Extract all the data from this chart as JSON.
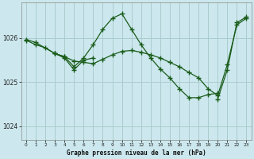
{
  "title": "Graphe pression niveau de la mer (hPa)",
  "bg_color": "#cce8ee",
  "grid_color": "#aacccc",
  "line_color": "#1a5c1a",
  "xlim": [
    -0.5,
    23.5
  ],
  "ylim": [
    1023.7,
    1026.8
  ],
  "yticks": [
    1024,
    1025,
    1026
  ],
  "xticks": [
    0,
    1,
    2,
    3,
    4,
    5,
    6,
    7,
    8,
    9,
    10,
    11,
    12,
    13,
    14,
    15,
    16,
    17,
    18,
    19,
    20,
    21,
    22,
    23
  ],
  "series": [
    {
      "x": [
        0,
        1,
        2,
        3,
        4,
        5,
        6,
        7,
        8,
        9,
        10,
        11,
        12,
        13,
        14,
        15,
        16,
        17,
        18,
        19,
        20,
        21,
        22,
        23
      ],
      "y": [
        1025.95,
        1025.85,
        1025.78,
        1025.65,
        1025.58,
        1025.48,
        1025.45,
        1025.42,
        1025.52,
        1025.62,
        1025.7,
        1025.72,
        1025.68,
        1025.62,
        1025.55,
        1025.45,
        1025.35,
        1025.22,
        1025.1,
        1024.85,
        1024.7,
        1025.4,
        1026.3,
        1026.45
      ]
    },
    {
      "x": [
        0,
        1,
        3,
        4,
        5,
        6,
        7,
        8,
        9,
        10,
        11,
        12,
        13,
        14,
        15,
        16,
        17,
        18,
        19,
        20
      ],
      "y": [
        1025.97,
        1025.9,
        1025.65,
        1025.58,
        1025.35,
        1025.55,
        1025.85,
        1026.2,
        1026.45,
        1026.55,
        1026.2,
        1025.85,
        1025.55,
        1025.3,
        1025.1,
        1024.85,
        1024.65,
        1024.65,
        1024.72,
        1024.75
      ]
    },
    {
      "x": [
        3,
        4,
        5,
        6,
        7
      ],
      "y": [
        1025.65,
        1025.55,
        1025.28,
        1025.5,
        1025.55
      ]
    },
    {
      "x": [
        20,
        21,
        22,
        23
      ],
      "y": [
        1024.62,
        1025.28,
        1026.35,
        1026.48
      ]
    }
  ]
}
